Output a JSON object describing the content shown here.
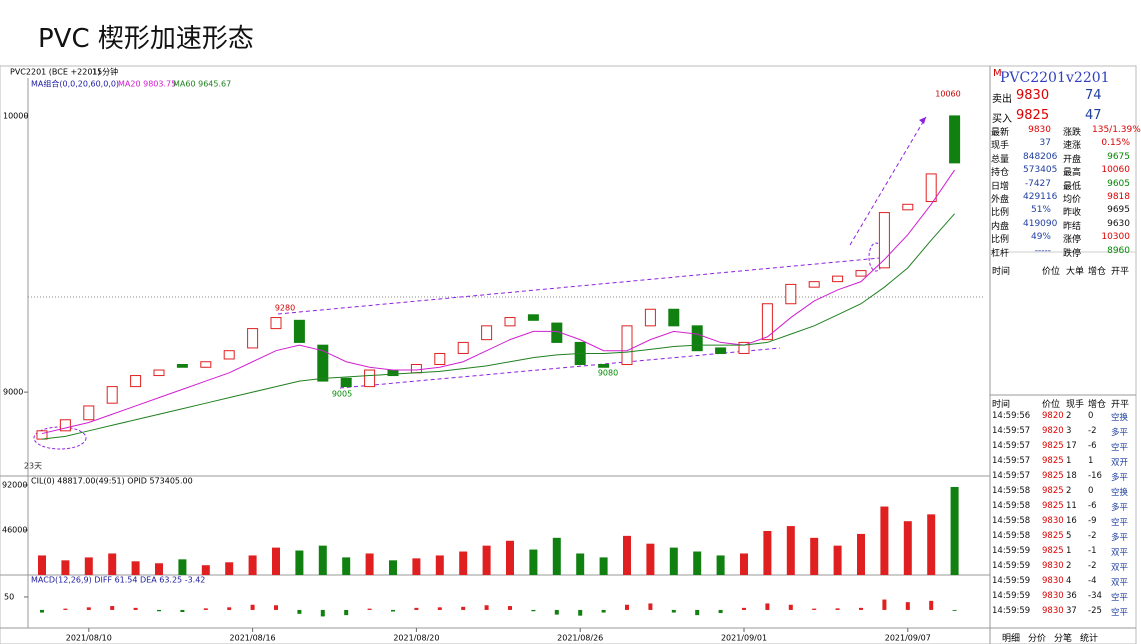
{
  "title": "PVC 楔形加速形态",
  "chart_data": {
    "type": "candlestick",
    "symbol": "PVC2201 (BCE +2201)",
    "period": "15分钟",
    "ma_header": "MA组合(0,0,20,60,0,0)",
    "categories": [
      null,
      null,
      "2021/08/10",
      null,
      null,
      null,
      null,
      null,
      null,
      "2021/08/16",
      null,
      null,
      null,
      null,
      null,
      null,
      "2021/08/20",
      null,
      null,
      null,
      null,
      null,
      null,
      "2021/08/26",
      null,
      null,
      null,
      null,
      null,
      null,
      "2021/09/01",
      null,
      null,
      null,
      null,
      null,
      null,
      "2021/09/07",
      null,
      null
    ],
    "open": [
      8830,
      8860,
      8900,
      8960,
      9020,
      9060,
      9100,
      9090,
      9120,
      9160,
      9230,
      9260,
      9170,
      9050,
      9020,
      9080,
      9070,
      9100,
      9140,
      9190,
      9240,
      9280,
      9250,
      9180,
      9100,
      9100,
      9240,
      9300,
      9240,
      9160,
      9140,
      9190,
      9320,
      9380,
      9400,
      9420,
      9450,
      9660,
      9690,
      10000
    ],
    "close": [
      8860,
      8900,
      8950,
      9020,
      9060,
      9080,
      9090,
      9110,
      9150,
      9230,
      9270,
      9180,
      9040,
      9020,
      9080,
      9060,
      9100,
      9140,
      9180,
      9240,
      9270,
      9260,
      9180,
      9100,
      9090,
      9240,
      9300,
      9240,
      9150,
      9140,
      9180,
      9320,
      9390,
      9400,
      9420,
      9440,
      9650,
      9680,
      9790,
      9830
    ],
    "series": [
      {
        "name": "MA20 9803.75",
        "color": "#d020d0",
        "values": [
          8850,
          8870,
          8890,
          8920,
          8950,
          8980,
          9010,
          9040,
          9070,
          9110,
          9150,
          9170,
          9150,
          9110,
          9090,
          9080,
          9080,
          9090,
          9110,
          9150,
          9190,
          9220,
          9220,
          9190,
          9150,
          9150,
          9190,
          9220,
          9210,
          9180,
          9170,
          9200,
          9270,
          9330,
          9370,
          9400,
          9480,
          9570,
          9680,
          9804
        ]
      },
      {
        "name": "MA60 9645.67",
        "color": "#208020",
        "values": [
          8830,
          8840,
          8860,
          8880,
          8900,
          8920,
          8940,
          8960,
          8980,
          9000,
          9020,
          9040,
          9050,
          9055,
          9060,
          9065,
          9070,
          9075,
          9085,
          9095,
          9110,
          9125,
          9135,
          9140,
          9140,
          9145,
          9155,
          9165,
          9170,
          9170,
          9170,
          9180,
          9210,
          9240,
          9280,
          9320,
          9380,
          9450,
          9550,
          9646
        ]
      }
    ],
    "ylim": [
      8700,
      10130
    ],
    "yticks": [
      9000,
      10000
    ],
    "annotations": [
      "10060",
      "9280",
      "9005",
      "9080",
      "23天"
    ],
    "volume": {
      "header": "CIL(0)  48817.00(49:51)  OPID 573405.00",
      "ylim": [
        0,
        92000
      ],
      "yticks": [
        46000,
        92000
      ],
      "values": [
        20000,
        15000,
        18000,
        22000,
        14000,
        12000,
        16000,
        10000,
        13000,
        20000,
        28000,
        25000,
        30000,
        18000,
        22000,
        15000,
        17000,
        20000,
        24000,
        30000,
        35000,
        26000,
        38000,
        22000,
        18000,
        40000,
        32000,
        28000,
        24000,
        20000,
        22000,
        45000,
        50000,
        38000,
        30000,
        42000,
        70000,
        55000,
        62000,
        90000
      ]
    },
    "macd": {
      "header": "MACD(12,26,9)  DIFF 61.54  DEA 63.25  -3.42",
      "ylim": [
        -58,
        123
      ],
      "yticks": [
        50
      ],
      "values": [
        -10,
        5,
        10,
        15,
        8,
        -5,
        -8,
        6,
        10,
        20,
        18,
        -15,
        -25,
        -20,
        5,
        -6,
        8,
        10,
        12,
        18,
        15,
        -5,
        -18,
        -22,
        -10,
        20,
        25,
        -10,
        -20,
        -12,
        8,
        25,
        20,
        5,
        6,
        8,
        40,
        30,
        35,
        -3.42
      ]
    }
  },
  "quote": {
    "mark": "M",
    "symbol": "PVC2201",
    "code": "v2201",
    "ask_label": "卖出",
    "ask": 9830,
    "ask_vol": 74,
    "bid_label": "买入",
    "bid": 9825,
    "bid_vol": 47
  },
  "stats": [
    [
      "最新",
      9830,
      "涨跌",
      "135/1.39%"
    ],
    [
      "现手",
      37,
      "速涨",
      "0.15%"
    ],
    [
      "总量",
      848206,
      "开盘",
      9675
    ],
    [
      "持仓",
      573405,
      "最高",
      10060
    ],
    [
      "日增",
      -7427,
      "最低",
      9605
    ],
    [
      "外盘",
      429116,
      "均价",
      9818
    ],
    [
      "比例",
      "51%",
      "昨收",
      9695
    ],
    [
      "内盘",
      419090,
      "昨结",
      9630
    ],
    [
      "比例",
      "49%",
      "涨停",
      10300
    ],
    [
      "杠杆",
      "-----",
      "跌停",
      8960
    ]
  ],
  "big_header": [
    "时间",
    "价位",
    "大单",
    "增仓",
    "开平"
  ],
  "tape_header": [
    "时间",
    "价位",
    "现手",
    "增仓",
    "开平"
  ],
  "tape": [
    [
      "14:59:56",
      9820,
      2,
      0,
      "空换"
    ],
    [
      "14:59:57",
      9820,
      3,
      -2,
      "多平"
    ],
    [
      "14:59:57",
      9825,
      17,
      -6,
      "空平"
    ],
    [
      "14:59:57",
      9825,
      1,
      1,
      "双开"
    ],
    [
      "14:59:57",
      9825,
      18,
      -16,
      "多平"
    ],
    [
      "14:59:58",
      9825,
      2,
      0,
      "空换"
    ],
    [
      "14:59:58",
      9825,
      11,
      -6,
      "多平"
    ],
    [
      "14:59:58",
      9830,
      16,
      -9,
      "空平"
    ],
    [
      "14:59:58",
      9825,
      5,
      -2,
      "多平"
    ],
    [
      "14:59:59",
      9825,
      1,
      -1,
      "双平"
    ],
    [
      "14:59:59",
      9830,
      2,
      -2,
      "双平"
    ],
    [
      "14:59:59",
      9830,
      4,
      -4,
      "双平"
    ],
    [
      "14:59:59",
      9830,
      36,
      -34,
      "空平"
    ],
    [
      "14:59:59",
      9830,
      37,
      -25,
      "空平"
    ]
  ],
  "tabs": [
    "明细",
    "分价",
    "分笔",
    "统计"
  ]
}
